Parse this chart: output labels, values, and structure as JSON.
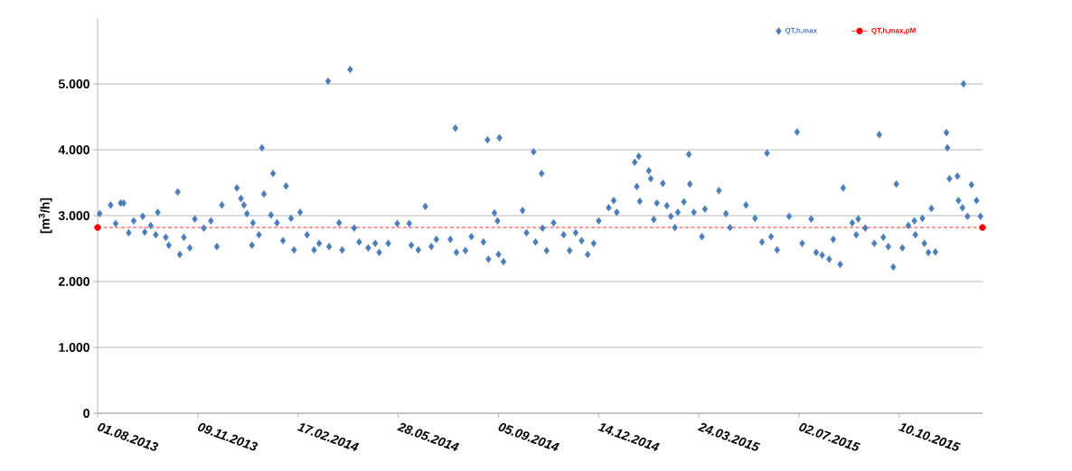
{
  "chart_data": {
    "type": "scatter",
    "ylabel": "[m$^{3}$/h]",
    "xlim": [
      "2013-08-01",
      "2016-01-01"
    ],
    "ylim": [
      0,
      6000
    ],
    "xticks": [
      {
        "value": "2013-08-01",
        "label": "01.08.2013"
      },
      {
        "value": "2013-11-09",
        "label": "09.11.2013"
      },
      {
        "value": "2014-02-17",
        "label": "17.02.2014"
      },
      {
        "value": "2014-05-28",
        "label": "28.05.2014"
      },
      {
        "value": "2014-09-05",
        "label": "05.09.2014"
      },
      {
        "value": "2014-12-14",
        "label": "14.12.2014"
      },
      {
        "value": "2015-03-24",
        "label": "24.03.2015"
      },
      {
        "value": "2015-07-02",
        "label": "02.07.2015"
      },
      {
        "value": "2015-10-10",
        "label": "10.10.2015"
      }
    ],
    "yticks": [
      0,
      {
        "value": 1000,
        "label": "1.000"
      },
      {
        "value": 2000,
        "label": "2.000"
      },
      {
        "value": 3000,
        "label": "3.000"
      },
      {
        "value": 4000,
        "label": "4.000"
      },
      {
        "value": 5000,
        "label": "5.000"
      }
    ],
    "grid": "y",
    "legend": "top right",
    "series": [
      {
        "name": "QT,h,max",
        "marker": "diamond",
        "color": "#4a7ebb",
        "x": [
          "2013-08-03",
          "2013-08-14",
          "2013-08-19",
          "2013-08-24",
          "2013-08-27",
          "2013-09-01",
          "2013-09-06",
          "2013-09-15",
          "2013-09-17",
          "2013-09-23",
          "2013-09-28",
          "2013-09-30",
          "2013-10-08",
          "2013-10-11",
          "2013-10-20",
          "2013-10-22",
          "2013-10-26",
          "2013-11-01",
          "2013-11-06",
          "2013-11-15",
          "2013-11-22",
          "2013-11-28",
          "2013-12-03",
          "2013-12-18",
          "2013-12-22",
          "2013-12-25",
          "2013-12-28",
          "2014-01-02",
          "2014-01-03",
          "2014-01-09",
          "2014-01-12",
          "2014-01-14",
          "2014-01-23",
          "2014-01-21",
          "2014-01-27",
          "2014-02-05",
          "2014-02-02",
          "2014-02-10",
          "2014-02-19",
          "2014-02-13",
          "2014-02-26",
          "2014-03-05",
          "2014-03-10",
          "2014-03-19",
          "2014-03-20",
          "2014-03-30",
          "2014-04-02",
          "2014-04-10",
          "2014-04-14",
          "2014-04-19",
          "2014-04-28",
          "2014-05-05",
          "2014-05-09",
          "2014-05-18",
          "2014-05-27",
          "2014-06-08",
          "2014-06-10",
          "2014-06-17",
          "2014-06-24",
          "2014-06-30",
          "2014-07-05",
          "2014-07-19",
          "2014-07-24",
          "2014-07-25",
          "2014-08-03",
          "2014-08-09",
          "2014-08-21",
          "2014-08-26",
          "2014-08-25",
          "2014-09-01",
          "2014-09-04",
          "2014-09-06",
          "2014-09-05",
          "2014-09-10",
          "2014-09-29",
          "2014-10-03",
          "2014-10-10",
          "2014-10-12",
          "2014-10-18",
          "2014-10-19",
          "2014-10-23",
          "2014-10-30",
          "2014-11-09",
          "2014-11-15",
          "2014-11-21",
          "2014-11-27",
          "2014-12-03",
          "2014-12-09",
          "2014-12-14",
          "2014-12-24",
          "2014-12-29",
          "2015-01-01",
          "2015-01-19",
          "2015-01-23",
          "2015-01-21",
          "2015-01-24",
          "2015-02-02",
          "2015-02-04",
          "2015-02-07",
          "2015-02-10",
          "2015-02-16",
          "2015-02-20",
          "2015-02-24",
          "2015-02-28",
          "2015-03-03",
          "2015-03-09",
          "2015-03-14",
          "2015-03-15",
          "2015-03-19",
          "2015-03-27",
          "2015-03-30",
          "2015-04-13",
          "2015-04-20",
          "2015-04-24",
          "2015-05-10",
          "2015-05-19",
          "2015-05-26",
          "2015-05-31",
          "2015-06-04",
          "2015-06-10",
          "2015-06-22",
          "2015-06-30",
          "2015-07-05",
          "2015-07-14",
          "2015-07-19",
          "2015-07-25",
          "2015-08-01",
          "2015-08-05",
          "2015-08-12",
          "2015-08-15",
          "2015-08-24",
          "2015-08-30",
          "2015-08-28",
          "2015-09-06",
          "2015-09-15",
          "2015-09-20",
          "2015-09-24",
          "2015-09-29",
          "2015-10-04",
          "2015-10-07",
          "2015-10-13",
          "2015-10-19",
          "2015-10-25",
          "2015-11-02",
          "2015-10-26",
          "2015-11-04",
          "2015-11-08",
          "2015-11-11",
          "2015-11-15",
          "2015-11-26",
          "2015-11-27",
          "2015-11-29",
          "2015-12-07",
          "2015-12-08",
          "2015-12-13",
          "2015-12-12",
          "2015-12-17",
          "2015-12-21",
          "2015-12-26",
          "2015-12-30"
        ],
        "values": [
          3030,
          3160,
          2880,
          3190,
          3190,
          2740,
          2920,
          2990,
          2750,
          2850,
          2710,
          3050,
          2670,
          2550,
          3360,
          2410,
          2670,
          2510,
          2950,
          2810,
          2920,
          2530,
          3160,
          3420,
          3260,
          3160,
          3030,
          2550,
          2890,
          2710,
          4030,
          3330,
          3640,
          3010,
          2890,
          3450,
          2620,
          2960,
          3050,
          2480,
          2710,
          2480,
          2580,
          5040,
          2530,
          2890,
          2480,
          5220,
          2810,
          2600,
          2510,
          2580,
          2440,
          2580,
          2880,
          2880,
          2550,
          2480,
          3140,
          2530,
          2640,
          2640,
          4330,
          2440,
          2470,
          2680,
          2600,
          2340,
          4150,
          3040,
          2920,
          4180,
          2410,
          2300,
          3080,
          2740,
          3970,
          2600,
          3640,
          2810,
          2470,
          2890,
          2710,
          2470,
          2740,
          2620,
          2410,
          2580,
          2920,
          3120,
          3230,
          3050,
          3810,
          3900,
          3440,
          3220,
          3680,
          3560,
          2940,
          3190,
          3490,
          3150,
          2990,
          2820,
          3050,
          3210,
          3930,
          3480,
          3050,
          2680,
          3100,
          3380,
          3030,
          2820,
          3160,
          2960,
          2600,
          3950,
          2680,
          2480,
          2990,
          4270,
          2580,
          2950,
          2440,
          2400,
          2340,
          2640,
          2260,
          3420,
          2890,
          2950,
          2710,
          2810,
          2580,
          4230,
          2670,
          2530,
          2220,
          3480,
          2510,
          2850,
          2920,
          2960,
          2710,
          2580,
          2440,
          3110,
          2450,
          4260,
          4030,
          3560,
          3600,
          3230,
          5000,
          3120,
          2990,
          3470,
          3230,
          2990
        ]
      },
      {
        "name": "QT,h,max,pM",
        "type": "line",
        "marker": "circle",
        "line_style": "dashed",
        "color": "#ff0000",
        "x": [
          "2013-08-01",
          "2016-01-01"
        ],
        "values": [
          2820,
          2820
        ]
      }
    ]
  }
}
